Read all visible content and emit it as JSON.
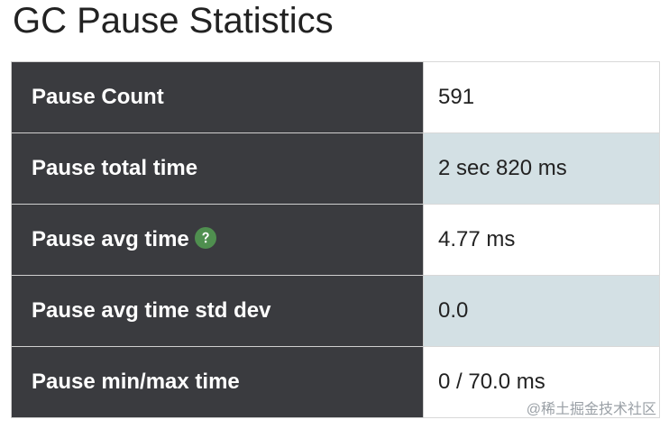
{
  "header": {
    "title": "GC Pause Statistics"
  },
  "table": {
    "rows": [
      [
        "Pause Count",
        "591"
      ],
      [
        "Pause total time",
        "2 sec 820 ms"
      ],
      [
        "Pause avg time",
        "4.77 ms"
      ],
      [
        "Pause avg time std dev",
        "0.0"
      ],
      [
        "Pause min/max time",
        "0 / 70.0 ms"
      ]
    ]
  },
  "watermark": "@稀土掘金技术社区"
}
